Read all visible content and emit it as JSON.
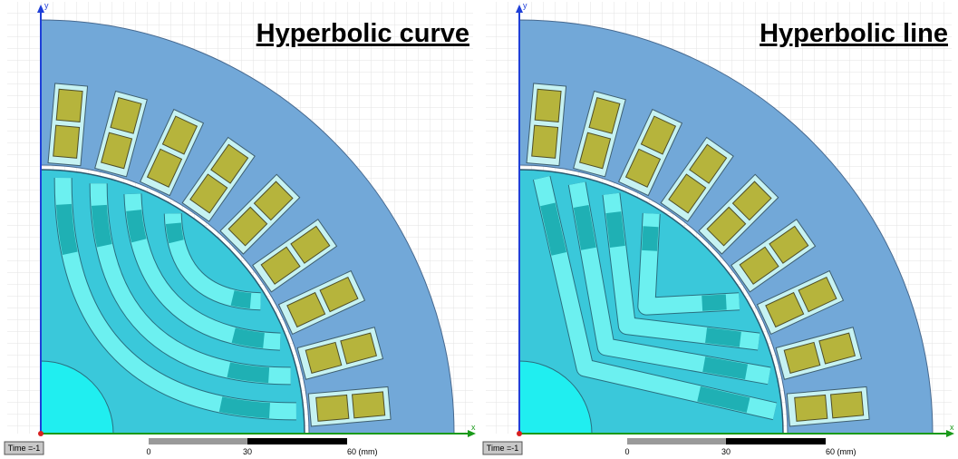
{
  "panels": [
    {
      "title": "Hyperbolic curve",
      "axis_y": "y",
      "axis_x": "x",
      "time_label": "Time =-1",
      "scale_labels": [
        "0",
        "30",
        "60 (mm)"
      ]
    },
    {
      "title": "Hyperbolic line",
      "axis_y": "y",
      "axis_x": "x",
      "time_label": "Time =-1",
      "scale_labels": [
        "0",
        "30",
        "60 (mm)"
      ]
    }
  ]
}
